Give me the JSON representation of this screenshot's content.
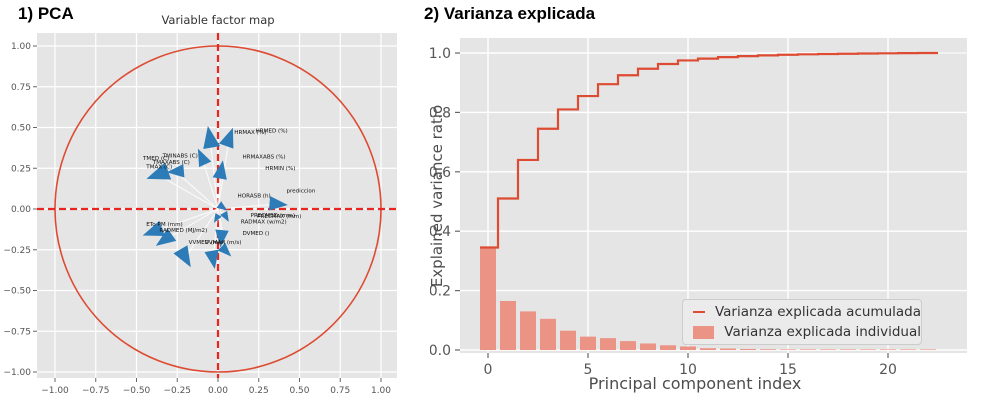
{
  "colors": {
    "panel": "#e5e5e5",
    "grid": "#ffffff",
    "accent_red": "#dd4b32",
    "crosshair_red": "#e8251f",
    "bar_fill": "#eb9486",
    "arrow_blue": "#2d7cb8",
    "shaft_white": "rgba(255,255,255,0.75)",
    "tick_text": "#555555",
    "axis_text": "#4d4d4d",
    "pca_label_text": "#111111",
    "legend_bg": "#ebebeb",
    "white_tail": "#f2f2f2"
  },
  "chart_data": [
    {
      "id": "pca",
      "type": "scatter",
      "section_title": "1) PCA",
      "title": "Variable factor map",
      "xlim": [
        -1.11,
        1.1
      ],
      "ylim": [
        -1.04,
        1.08
      ],
      "unit_circle_radius": 1.0,
      "crosshair": {
        "x": 0,
        "y": 0
      },
      "x_tick_vals": [
        -1.0,
        -0.75,
        -0.5,
        -0.25,
        0.0,
        0.25,
        0.5,
        0.75,
        1.0
      ],
      "x_tick_labels": [
        "−1.00",
        "−0.75",
        "−0.50",
        "−0.25",
        "0.00",
        "0.25",
        "0.50",
        "0.75",
        "1.00"
      ],
      "y_tick_vals": [
        1.0,
        0.75,
        0.5,
        0.25,
        0.0,
        -0.25,
        -0.5,
        -0.75,
        -1.0
      ],
      "y_tick_labels": [
        "1.00",
        "0.75",
        "0.50",
        "0.25",
        "0.00",
        "−0.25",
        "−0.50",
        "−0.75",
        "−1.00"
      ],
      "grid": true,
      "arrows": [
        {
          "x": -0.05,
          "y": 0.44,
          "angle": 100,
          "size": 19
        },
        {
          "x": 0.07,
          "y": 0.44,
          "angle": 70,
          "size": 17
        },
        {
          "x": -0.1,
          "y": 0.32,
          "angle": 115,
          "size": 15
        },
        {
          "x": -0.37,
          "y": 0.21,
          "angle": 200,
          "size": 20
        },
        {
          "x": -0.26,
          "y": 0.23,
          "angle": 185,
          "size": 15
        },
        {
          "x": 0.02,
          "y": 0.24,
          "angle": 80,
          "size": 16
        },
        {
          "x": 0.37,
          "y": 0.03,
          "angle": -5,
          "size": 16
        },
        {
          "x": 0.03,
          "y": 0.01,
          "angle": -35,
          "size": 9
        },
        {
          "x": 0.05,
          "y": -0.05,
          "angle": -60,
          "size": 9
        },
        {
          "x": -0.01,
          "y": -0.06,
          "angle": -120,
          "size": 8
        },
        {
          "x": -0.4,
          "y": -0.14,
          "angle": 200,
          "size": 18
        },
        {
          "x": -0.33,
          "y": -0.19,
          "angle": 215,
          "size": 17
        },
        {
          "x": 0.02,
          "y": -0.18,
          "angle": -95,
          "size": 15
        },
        {
          "x": -0.2,
          "y": -0.3,
          "angle": -60,
          "size": 18
        },
        {
          "x": -0.03,
          "y": -0.31,
          "angle": -80,
          "size": 16
        },
        {
          "x": 0.05,
          "y": -0.26,
          "angle": -45,
          "size": 12
        }
      ],
      "labels": [
        {
          "text": "HRMAX (%)",
          "x": 0.1,
          "y": 0.46
        },
        {
          "text": "HRMED (%)",
          "x": 0.23,
          "y": 0.47
        },
        {
          "text": "HRMAXABS (%)",
          "x": 0.15,
          "y": 0.31
        },
        {
          "text": "HRMIN (%)",
          "x": 0.29,
          "y": 0.24
        },
        {
          "text": "TMED (C)",
          "x": -0.46,
          "y": 0.3
        },
        {
          "text": "TMINABS (C)",
          "x": -0.34,
          "y": 0.315
        },
        {
          "text": "TMAXABS (C)",
          "x": -0.4,
          "y": 0.275
        },
        {
          "text": "TMAX (C)",
          "x": -0.44,
          "y": 0.25
        },
        {
          "text": "HORASB (h)",
          "x": 0.12,
          "y": 0.07
        },
        {
          "text": "prediccion",
          "x": 0.42,
          "y": 0.1
        },
        {
          "text": "PRECMED (mm)",
          "x": 0.2,
          "y": -0.05
        },
        {
          "text": "PRECMAX (mm)",
          "x": 0.24,
          "y": -0.055
        },
        {
          "text": "RADMAX (w/m2)",
          "x": 0.14,
          "y": -0.09
        },
        {
          "text": "ETo PM (mm)",
          "x": -0.44,
          "y": -0.105
        },
        {
          "text": "RADMED (MJ/m2)",
          "x": -0.36,
          "y": -0.14
        },
        {
          "text": "DVMED ()",
          "x": 0.15,
          "y": -0.16
        },
        {
          "text": "VVMED (m/s)",
          "x": -0.18,
          "y": -0.215
        },
        {
          "text": "VVMAX (m/s)",
          "x": -0.08,
          "y": -0.215
        }
      ]
    },
    {
      "id": "variance",
      "type": "bar",
      "section_title": "2) Varianza explicada",
      "xlabel": "Principal component index",
      "ylabel": "Explained variance ratio",
      "xlim": [
        -1.6,
        24.0
      ],
      "ylim": [
        0,
        1.035
      ],
      "grid": true,
      "legend": [
        "Varianza explicada acumulada",
        "Varianza explicada individual"
      ],
      "legend_position": "lower right",
      "x_tick_vals": [
        0,
        5,
        10,
        15,
        20
      ],
      "x_tick_labels": [
        "0",
        "5",
        "10",
        "15",
        "20"
      ],
      "y_tick_vals": [
        0.0,
        0.2,
        0.4,
        0.6,
        0.8,
        1.0
      ],
      "y_tick_labels": [
        "0.0",
        "0.2",
        "0.4",
        "0.6",
        "0.8",
        "1.0"
      ],
      "x": [
        0,
        1,
        2,
        3,
        4,
        5,
        6,
        7,
        8,
        9,
        10,
        11,
        12,
        13,
        14,
        15,
        16,
        17,
        18,
        19,
        20,
        21,
        22
      ],
      "series": [
        {
          "name": "Varianza explicada acumulada",
          "style": "step-mid-line",
          "values": [
            0.345,
            0.51,
            0.64,
            0.745,
            0.81,
            0.855,
            0.895,
            0.925,
            0.947,
            0.963,
            0.975,
            0.981,
            0.986,
            0.9895,
            0.992,
            0.994,
            0.9955,
            0.9966,
            0.9975,
            0.9983,
            0.999,
            0.9995,
            1.0
          ]
        },
        {
          "name": "Varianza explicada individual",
          "style": "bar",
          "values": [
            0.345,
            0.165,
            0.13,
            0.105,
            0.065,
            0.045,
            0.04,
            0.03,
            0.022,
            0.016,
            0.012,
            0.006,
            0.005,
            0.0035,
            0.0025,
            0.002,
            0.0015,
            0.0011,
            0.0009,
            0.0008,
            0.0007,
            0.0005,
            0.0005
          ]
        }
      ]
    }
  ]
}
